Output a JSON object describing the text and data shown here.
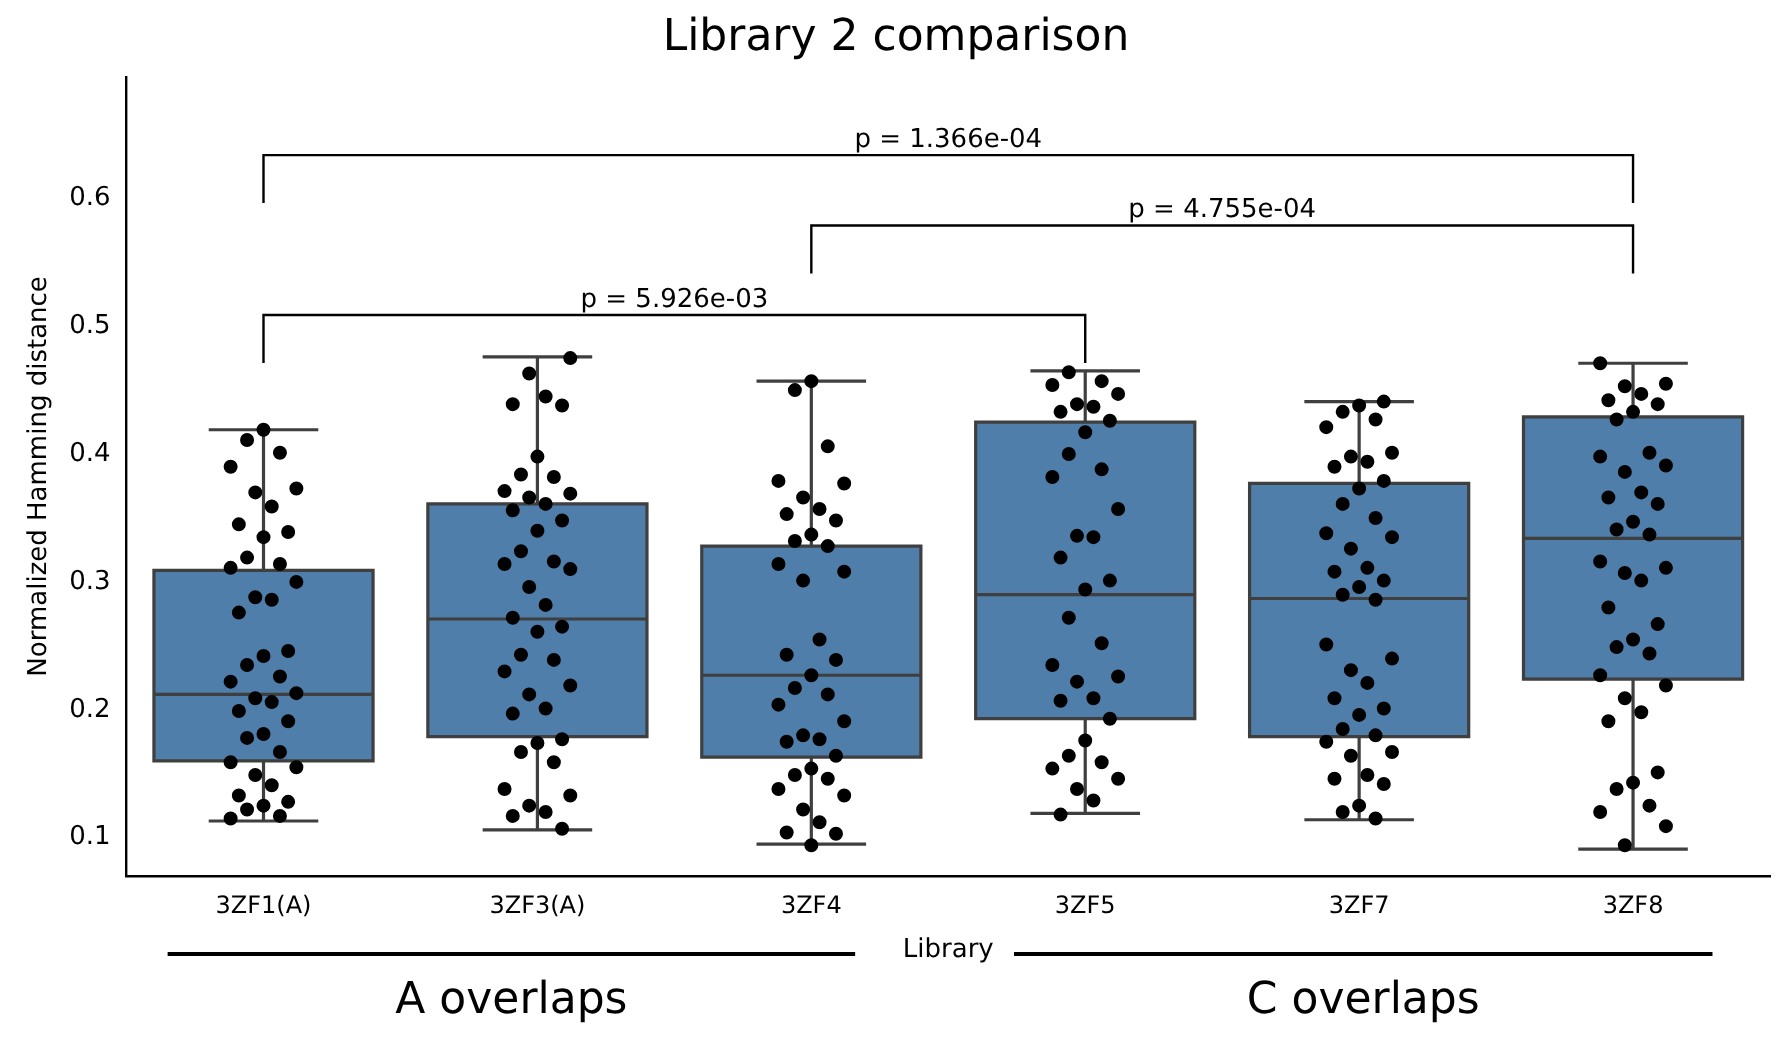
{
  "chart_data": {
    "type": "box",
    "title": "Library 2 comparison",
    "xlabel": "Library",
    "ylabel": "Normalized Hamming distance",
    "categories": [
      "3ZF1(A)",
      "3ZF3(A)",
      "3ZF4",
      "3ZF5",
      "3ZF7",
      "3ZF8"
    ],
    "ylim": [
      0.07,
      0.695
    ],
    "yticks": [
      0.1,
      0.2,
      0.3,
      0.4,
      0.5,
      0.6
    ],
    "grid": false,
    "legend": false,
    "annotations": [
      "p = 1.366e-04",
      "p = 4.755e-04",
      "p = 5.926e-03",
      "A overlaps",
      "C overlaps"
    ],
    "series": [
      {
        "type": "box",
        "color": "#4e7ea9",
        "boxes": [
          {
            "low": 0.113,
            "q1": 0.16,
            "median": 0.212,
            "q3": 0.309,
            "high": 0.419
          },
          {
            "low": 0.106,
            "q1": 0.179,
            "median": 0.271,
            "q3": 0.361,
            "high": 0.476
          },
          {
            "low": 0.095,
            "q1": 0.163,
            "median": 0.227,
            "q3": 0.328,
            "high": 0.457
          },
          {
            "low": 0.119,
            "q1": 0.193,
            "median": 0.29,
            "q3": 0.425,
            "high": 0.465
          },
          {
            "low": 0.114,
            "q1": 0.179,
            "median": 0.287,
            "q3": 0.377,
            "high": 0.441
          },
          {
            "low": 0.091,
            "q1": 0.224,
            "median": 0.334,
            "q3": 0.429,
            "high": 0.471
          }
        ]
      },
      {
        "type": "scatter",
        "color": "#000000",
        "marker": "circle",
        "x": [
          "3ZF1(A)",
          "3ZF1(A)",
          "3ZF1(A)",
          "3ZF1(A)",
          "3ZF1(A)",
          "3ZF1(A)",
          "3ZF1(A)",
          "3ZF1(A)",
          "3ZF1(A)",
          "3ZF1(A)",
          "3ZF1(A)",
          "3ZF1(A)",
          "3ZF1(A)",
          "3ZF1(A)",
          "3ZF1(A)",
          "3ZF1(A)",
          "3ZF1(A)",
          "3ZF1(A)",
          "3ZF1(A)",
          "3ZF1(A)",
          "3ZF1(A)",
          "3ZF1(A)",
          "3ZF1(A)",
          "3ZF1(A)",
          "3ZF1(A)",
          "3ZF1(A)",
          "3ZF1(A)",
          "3ZF1(A)",
          "3ZF1(A)",
          "3ZF1(A)",
          "3ZF1(A)",
          "3ZF1(A)",
          "3ZF1(A)",
          "3ZF1(A)",
          "3ZF1(A)",
          "3ZF1(A)",
          "3ZF1(A)",
          "3ZF1(A)",
          "3ZF1(A)",
          "3ZF1(A)",
          "3ZF3(A)",
          "3ZF3(A)",
          "3ZF3(A)",
          "3ZF3(A)",
          "3ZF3(A)",
          "3ZF3(A)",
          "3ZF3(A)",
          "3ZF3(A)",
          "3ZF3(A)",
          "3ZF3(A)",
          "3ZF3(A)",
          "3ZF3(A)",
          "3ZF3(A)",
          "3ZF3(A)",
          "3ZF3(A)",
          "3ZF3(A)",
          "3ZF3(A)",
          "3ZF3(A)",
          "3ZF3(A)",
          "3ZF3(A)",
          "3ZF3(A)",
          "3ZF3(A)",
          "3ZF3(A)",
          "3ZF3(A)",
          "3ZF3(A)",
          "3ZF3(A)",
          "3ZF3(A)",
          "3ZF3(A)",
          "3ZF3(A)",
          "3ZF3(A)",
          "3ZF3(A)",
          "3ZF3(A)",
          "3ZF3(A)",
          "3ZF3(A)",
          "3ZF3(A)",
          "3ZF3(A)",
          "3ZF3(A)",
          "3ZF3(A)",
          "3ZF3(A)",
          "3ZF3(A)",
          "3ZF3(A)",
          "3ZF4",
          "3ZF4",
          "3ZF4",
          "3ZF4",
          "3ZF4",
          "3ZF4",
          "3ZF4",
          "3ZF4",
          "3ZF4",
          "3ZF4",
          "3ZF4",
          "3ZF4",
          "3ZF4",
          "3ZF4",
          "3ZF4",
          "3ZF4",
          "3ZF4",
          "3ZF4",
          "3ZF4",
          "3ZF4",
          "3ZF4",
          "3ZF4",
          "3ZF4",
          "3ZF4",
          "3ZF4",
          "3ZF4",
          "3ZF4",
          "3ZF4",
          "3ZF4",
          "3ZF4",
          "3ZF4",
          "3ZF4",
          "3ZF4",
          "3ZF4",
          "3ZF4",
          "3ZF4",
          "3ZF4",
          "3ZF5",
          "3ZF5",
          "3ZF5",
          "3ZF5",
          "3ZF5",
          "3ZF5",
          "3ZF5",
          "3ZF5",
          "3ZF5",
          "3ZF5",
          "3ZF5",
          "3ZF5",
          "3ZF5",
          "3ZF5",
          "3ZF5",
          "3ZF5",
          "3ZF5",
          "3ZF5",
          "3ZF5",
          "3ZF5",
          "3ZF5",
          "3ZF5",
          "3ZF5",
          "3ZF5",
          "3ZF5",
          "3ZF5",
          "3ZF5",
          "3ZF5",
          "3ZF5",
          "3ZF5",
          "3ZF5",
          "3ZF5",
          "3ZF5",
          "3ZF5",
          "3ZF7",
          "3ZF7",
          "3ZF7",
          "3ZF7",
          "3ZF7",
          "3ZF7",
          "3ZF7",
          "3ZF7",
          "3ZF7",
          "3ZF7",
          "3ZF7",
          "3ZF7",
          "3ZF7",
          "3ZF7",
          "3ZF7",
          "3ZF7",
          "3ZF7",
          "3ZF7",
          "3ZF7",
          "3ZF7",
          "3ZF7",
          "3ZF7",
          "3ZF7",
          "3ZF7",
          "3ZF7",
          "3ZF7",
          "3ZF7",
          "3ZF7",
          "3ZF7",
          "3ZF7",
          "3ZF7",
          "3ZF7",
          "3ZF7",
          "3ZF7",
          "3ZF7",
          "3ZF7",
          "3ZF7",
          "3ZF7",
          "3ZF7",
          "3ZF7",
          "3ZF8",
          "3ZF8",
          "3ZF8",
          "3ZF8",
          "3ZF8",
          "3ZF8",
          "3ZF8",
          "3ZF8",
          "3ZF8",
          "3ZF8",
          "3ZF8",
          "3ZF8",
          "3ZF8",
          "3ZF8",
          "3ZF8",
          "3ZF8",
          "3ZF8",
          "3ZF8",
          "3ZF8",
          "3ZF8",
          "3ZF8",
          "3ZF8",
          "3ZF8",
          "3ZF8",
          "3ZF8",
          "3ZF8",
          "3ZF8",
          "3ZF8",
          "3ZF8",
          "3ZF8",
          "3ZF8",
          "3ZF8",
          "3ZF8",
          "3ZF8",
          "3ZF8",
          "3ZF8",
          "3ZF8",
          "3ZF8",
          "3ZF8"
        ],
        "values": [
          0.419,
          0.411,
          0.401,
          0.39,
          0.373,
          0.37,
          0.359,
          0.345,
          0.339,
          0.335,
          0.319,
          0.314,
          0.311,
          0.3,
          0.288,
          0.286,
          0.276,
          0.246,
          0.242,
          0.235,
          0.226,
          0.222,
          0.213,
          0.209,
          0.206,
          0.199,
          0.191,
          0.181,
          0.178,
          0.167,
          0.159,
          0.155,
          0.149,
          0.141,
          0.133,
          0.128,
          0.125,
          0.122,
          0.117,
          0.115,
          0.475,
          0.463,
          0.445,
          0.439,
          0.438,
          0.398,
          0.384,
          0.382,
          0.371,
          0.369,
          0.366,
          0.361,
          0.356,
          0.348,
          0.34,
          0.324,
          0.316,
          0.314,
          0.31,
          0.296,
          0.282,
          0.272,
          0.265,
          0.261,
          0.243,
          0.239,
          0.23,
          0.219,
          0.212,
          0.201,
          0.197,
          0.177,
          0.174,
          0.167,
          0.159,
          0.138,
          0.133,
          0.125,
          0.12,
          0.117,
          0.107,
          0.457,
          0.45,
          0.406,
          0.379,
          0.377,
          0.366,
          0.357,
          0.353,
          0.348,
          0.337,
          0.332,
          0.328,
          0.314,
          0.308,
          0.301,
          0.255,
          0.243,
          0.239,
          0.227,
          0.217,
          0.212,
          0.204,
          0.191,
          0.18,
          0.177,
          0.175,
          0.164,
          0.154,
          0.149,
          0.146,
          0.138,
          0.133,
          0.122,
          0.112,
          0.104,
          0.103,
          0.094,
          0.464,
          0.457,
          0.454,
          0.447,
          0.439,
          0.437,
          0.433,
          0.426,
          0.417,
          0.4,
          0.388,
          0.382,
          0.357,
          0.336,
          0.335,
          0.319,
          0.301,
          0.294,
          0.272,
          0.252,
          0.235,
          0.226,
          0.222,
          0.209,
          0.207,
          0.193,
          0.176,
          0.164,
          0.159,
          0.154,
          0.146,
          0.138,
          0.129,
          0.118,
          0.441,
          0.438,
          0.433,
          0.427,
          0.421,
          0.401,
          0.398,
          0.394,
          0.39,
          0.379,
          0.373,
          0.361,
          0.35,
          0.338,
          0.335,
          0.326,
          0.311,
          0.308,
          0.301,
          0.296,
          0.29,
          0.286,
          0.251,
          0.24,
          0.231,
          0.221,
          0.209,
          0.201,
          0.196,
          0.185,
          0.18,
          0.175,
          0.167,
          0.164,
          0.149,
          0.146,
          0.142,
          0.125,
          0.12,
          0.115,
          0.471,
          0.455,
          0.453,
          0.447,
          0.442,
          0.439,
          0.433,
          0.427,
          0.401,
          0.398,
          0.391,
          0.386,
          0.37,
          0.366,
          0.361,
          0.347,
          0.341,
          0.337,
          0.316,
          0.311,
          0.307,
          0.301,
          0.28,
          0.267,
          0.255,
          0.249,
          0.244,
          0.227,
          0.219,
          0.209,
          0.198,
          0.191,
          0.151,
          0.143,
          0.138,
          0.125,
          0.12,
          0.109,
          0.094
        ]
      }
    ]
  }
}
